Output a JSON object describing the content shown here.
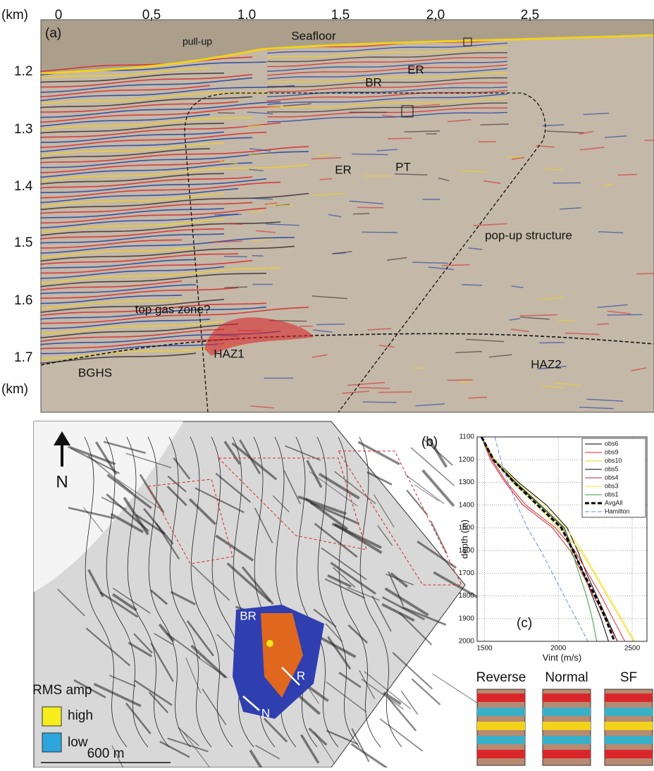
{
  "panel_a": {
    "label": "(a)",
    "x_unit": "(km)",
    "x_ticks": [
      "0",
      "0,5",
      "1.0",
      "1.5",
      "2,0",
      "2,5"
    ],
    "y_ticks": [
      "1.2",
      "1.3",
      "1.4",
      "1.5",
      "1.6",
      "1.7"
    ],
    "y_unit": "(km)",
    "annotations": [
      "Seafloor",
      "pull-up",
      "BR",
      "ER",
      "PT",
      "ER",
      "pop-up structure",
      "top gas zone?",
      "HAZ1",
      "BGHS",
      "HAZ2"
    ]
  },
  "panel_b": {
    "label": "(b)",
    "north": "N",
    "legend_title": "RMS amp",
    "legend_high": "high",
    "legend_low": "low",
    "scale_bar": "600 m",
    "annotations": [
      "BR",
      "R",
      "N"
    ]
  },
  "panel_inset": {
    "labels": [
      "Reverse",
      "Normal",
      "SF"
    ]
  },
  "chart_data": {
    "type": "line",
    "orientation": "horizontal",
    "label": "(c)",
    "x_label": "Vint (m/s)",
    "y_label": "depth (m)",
    "x": [
      1100,
      1200,
      1300,
      1400,
      1500,
      1600,
      1700,
      1800,
      1900,
      2000
    ],
    "series": [
      {
        "name": "obs6",
        "color": "#000000",
        "values": [
          1480,
          1570,
          1730,
          1920,
          2060,
          2130,
          2190,
          2260,
          2330,
          2400
        ]
      },
      {
        "name": "obs9",
        "color": "#e8232a",
        "values": [
          1480,
          1550,
          1650,
          1780,
          1980,
          2110,
          2200,
          2290,
          2370,
          2450
        ]
      },
      {
        "name": "obs10",
        "color": "#f2d21b",
        "values": [
          1480,
          1560,
          1690,
          1850,
          2000,
          2150,
          2240,
          2330,
          2420,
          2510
        ]
      },
      {
        "name": "obs5",
        "color": "#000000",
        "values": [
          1480,
          1560,
          1710,
          1880,
          2040,
          2100,
          2170,
          2230,
          2290,
          2340
        ]
      },
      {
        "name": "obs4",
        "color": "#c0262c",
        "values": [
          1480,
          1540,
          1640,
          1760,
          1960,
          2080,
          2160,
          2240,
          2320,
          2400
        ]
      },
      {
        "name": "obs3",
        "color": "#f5e43a",
        "values": [
          1480,
          1570,
          1720,
          1900,
          2050,
          2160,
          2250,
          2340,
          2430,
          2520
        ]
      },
      {
        "name": "obs1",
        "color": "#2f9e3a",
        "values": [
          1480,
          1560,
          1700,
          1870,
          2030,
          2090,
          2140,
          2190,
          2230,
          2260
        ]
      },
      {
        "name": "AvgAll",
        "color": "#000000",
        "dash": "6 3",
        "width": 3,
        "values": [
          1480,
          1560,
          1700,
          1860,
          2020,
          2100,
          2170,
          2250,
          2320,
          2380
        ]
      },
      {
        "name": "Hamilton",
        "color": "#6a8fd0",
        "dash": "6 3",
        "width": 1,
        "values": [
          1570,
          1610,
          1660,
          1720,
          1790,
          1880,
          1960,
          2040,
          2120,
          2200
        ]
      }
    ],
    "xlim": [
      1450,
      2600
    ],
    "xticks": [
      1500,
      2000,
      2500
    ],
    "ylim": [
      1100,
      2000
    ],
    "yticks": [
      1100,
      1200,
      1300,
      1400,
      1500,
      1600,
      1700,
      1800,
      1900,
      2000
    ],
    "grid": true,
    "legend": "top-right"
  }
}
